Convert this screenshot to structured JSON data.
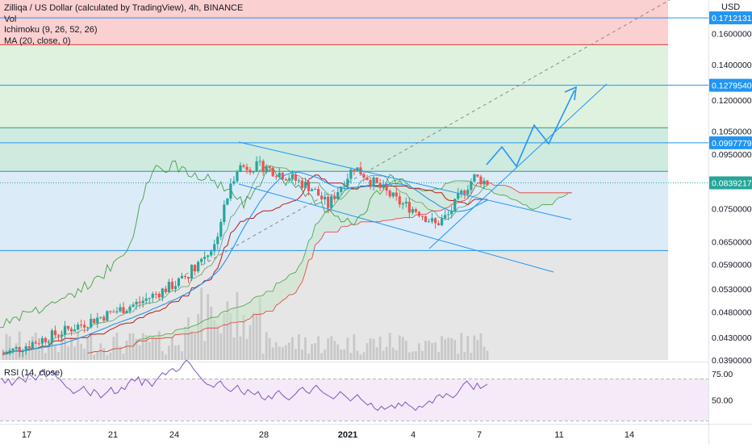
{
  "legend": {
    "title": "Zilliqa / US Dollar (calculated by TradingView), 4h, BINANCE",
    "vol": "Vol",
    "ichimoku": "Ichimoku (9, 26, 52, 26)",
    "ma": "MA (20, close, 0)",
    "rsi": "RSI (14, close)"
  },
  "currency": "USD",
  "colors": {
    "up": "#26a69a",
    "down": "#ef5350",
    "ma": "#2196f3",
    "trend": "#2196f3",
    "cloud_fill": "#c8e6c9",
    "conversion": "#2e7d32",
    "base": "#b71c1c",
    "leading_span_a": "#43a047",
    "leading_span_b": "#e53935",
    "lagging": "#43a047",
    "rsi": "#7e57c2"
  },
  "chart_data": [
    {
      "type": "candlestick",
      "title": "Zilliqa / US Dollar (calculated by TradingView), 4h, BINANCE",
      "x_tick_labels": [
        "17",
        "21",
        "24",
        "28",
        "2021",
        "4",
        "7",
        "11",
        "14"
      ],
      "y_tick_labels": [
        "0.03900000",
        "0.04300000",
        "0.04800000",
        "0.05300000",
        "0.05900000",
        "0.06500000",
        "0.07500000",
        "0.09500000",
        "0.10500000",
        "0.12000000",
        "0.14000000",
        "0.16000000"
      ],
      "ylim": [
        0.039,
        0.185
      ],
      "y_scale": "log",
      "price_labels": [
        {
          "value": "0.17121318",
          "color": "#2196f3"
        },
        {
          "value": "0.12795402",
          "color": "#2196f3"
        },
        {
          "value": "0.09977798",
          "color": "#2196f3"
        },
        {
          "value": "0.08392174",
          "color": "#26a69a"
        }
      ],
      "horizontal_levels": [
        0.17121318,
        0.1525,
        0.12795402,
        0.1065,
        0.09977798,
        0.0882,
        0.0626
      ],
      "fib_zones": [
        {
          "from": 0.1525,
          "to": 0.185,
          "color": "#fbd0d0"
        },
        {
          "from": 0.1065,
          "to": 0.1525,
          "color": "#dff2df"
        },
        {
          "from": 0.0882,
          "to": 0.1065,
          "color": "#cfeadf"
        },
        {
          "from": 0.0626,
          "to": 0.0882,
          "color": "#dcebf8"
        },
        {
          "from": 0.039,
          "to": 0.0626,
          "color": "#e6e6e6"
        }
      ],
      "close_reference": 0.08392174
    },
    {
      "type": "line",
      "title": "RSI (14, close)",
      "y_tick_labels": [
        "75.00",
        "50.00"
      ],
      "ylim": [
        28,
        85
      ],
      "band": [
        30,
        70
      ],
      "values": [
        71,
        66,
        70,
        64,
        68,
        72,
        70,
        67,
        75,
        72,
        69,
        74,
        79,
        72,
        75,
        78,
        72,
        70,
        66,
        62,
        60,
        56,
        58,
        60,
        63,
        58,
        54,
        60,
        57,
        52,
        55,
        58,
        62,
        56,
        57,
        62,
        60,
        66,
        70,
        68,
        72,
        64,
        70,
        67,
        63,
        68,
        72,
        76,
        74,
        78,
        80,
        77,
        79,
        84,
        88,
        85,
        80,
        76,
        72,
        68,
        65,
        64,
        62,
        66,
        68,
        63,
        60,
        58,
        61,
        64,
        58,
        55,
        60,
        57,
        55,
        58,
        52,
        50,
        54,
        51,
        56,
        59,
        55,
        52,
        50,
        53,
        56,
        60,
        62,
        58,
        56,
        61,
        64,
        60,
        57,
        55,
        53,
        51,
        54,
        58,
        55,
        52,
        49,
        52,
        55,
        51,
        48,
        45,
        47,
        42,
        40,
        44,
        41,
        43,
        45,
        42,
        47,
        44,
        48,
        45,
        43,
        40,
        44,
        43,
        46,
        49,
        47,
        53,
        55,
        52,
        56,
        54,
        52,
        55,
        60,
        65,
        68,
        64,
        60,
        66,
        61,
        63,
        65
      ]
    }
  ]
}
